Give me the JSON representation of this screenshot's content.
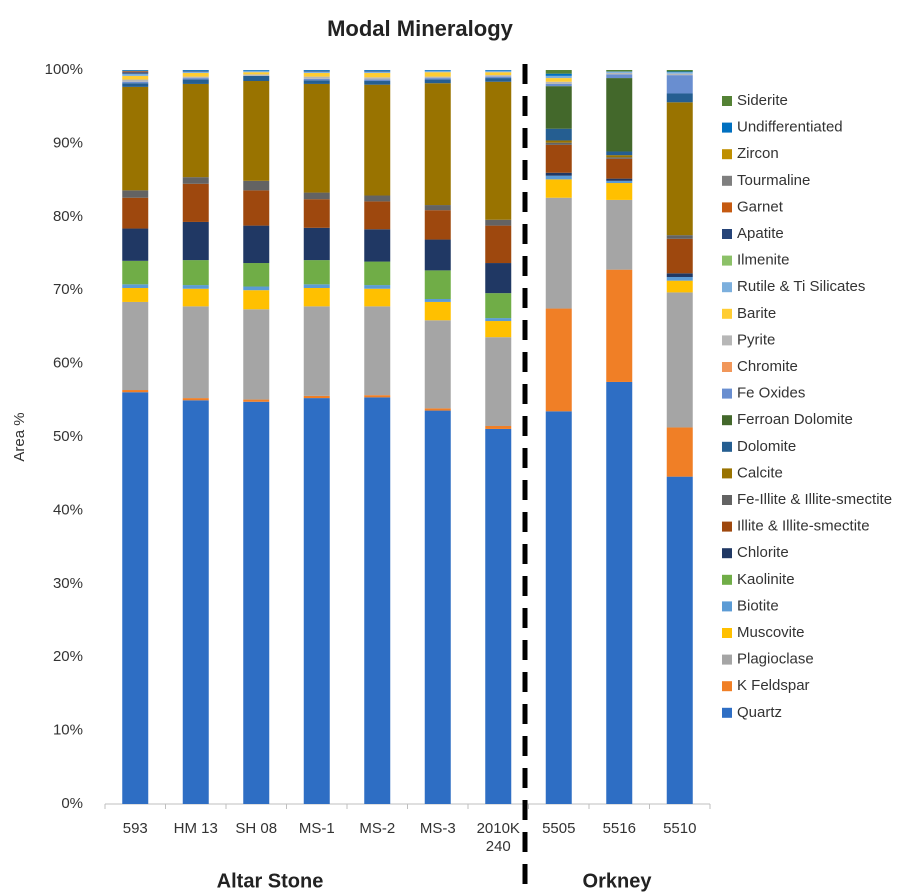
{
  "chart_data": {
    "type": "stacked_bar",
    "title": "Modal Mineralogy",
    "y_label": "Area %",
    "categories": [
      "593",
      "HM 13",
      "SH 08",
      "MS-1",
      "MS-2",
      "MS-3",
      "2010K 240",
      "5505",
      "5516",
      "5510"
    ],
    "groups": [
      "Altar Stone",
      "Orkney"
    ],
    "ylim": [
      0,
      100
    ],
    "yticks": [
      {
        "value": 0,
        "label": "0%"
      },
      {
        "value": 10,
        "label": "10%"
      },
      {
        "value": 20,
        "label": "20%"
      },
      {
        "value": 30,
        "label": "30%"
      },
      {
        "value": 40,
        "label": "40%"
      },
      {
        "value": 50,
        "label": "50%"
      },
      {
        "value": 60,
        "label": "60%"
      },
      {
        "value": 70,
        "label": "70%"
      },
      {
        "value": 80,
        "label": "80%"
      },
      {
        "value": 90,
        "label": "90%"
      },
      {
        "value": 100,
        "label": "100%"
      }
    ],
    "legend": "right",
    "series": [
      {
        "name": "Quartz",
        "color": "#2e6ec4",
        "values": [
          56.1,
          55.0,
          54.8,
          55.3,
          55.4,
          53.6,
          51.1,
          53.5,
          57.5,
          44.6
        ]
      },
      {
        "name": "K Feldspar",
        "color": "#f07f26",
        "values": [
          0.3,
          0.3,
          0.3,
          0.3,
          0.3,
          0.3,
          0.4,
          14.0,
          15.3,
          6.7
        ]
      },
      {
        "name": "Plagioclase",
        "color": "#a5a5a5",
        "values": [
          12.0,
          12.5,
          12.3,
          12.2,
          12.1,
          12.0,
          12.1,
          15.1,
          9.5,
          18.4
        ]
      },
      {
        "name": "Muscovite",
        "color": "#ffc000",
        "values": [
          1.9,
          2.4,
          2.6,
          2.5,
          2.4,
          2.5,
          2.2,
          2.5,
          2.3,
          1.6
        ]
      },
      {
        "name": "Biotite",
        "color": "#5b9bd5",
        "values": [
          0.5,
          0.5,
          0.5,
          0.5,
          0.5,
          0.4,
          0.4,
          0.5,
          0.3,
          0.5
        ]
      },
      {
        "name": "Kaolinite",
        "color": "#70ad47",
        "values": [
          3.2,
          3.4,
          3.2,
          3.3,
          3.2,
          3.9,
          3.4,
          0,
          0,
          0
        ]
      },
      {
        "name": "Chlorite",
        "color": "#203864",
        "values": [
          4.4,
          5.2,
          5.1,
          4.4,
          4.4,
          4.2,
          4.1,
          0.4,
          0.3,
          0.5
        ]
      },
      {
        "name": "Illite & Illite-smectite",
        "color": "#9e480e",
        "values": [
          4.2,
          5.2,
          4.8,
          3.9,
          3.8,
          4.0,
          5.1,
          3.8,
          2.7,
          4.7
        ]
      },
      {
        "name": "Fe-Illite & Illite-smectite",
        "color": "#636363",
        "values": [
          1.0,
          0.9,
          1.3,
          0.9,
          0.8,
          0.7,
          0.8,
          0.3,
          0.2,
          0.5
        ]
      },
      {
        "name": "Calcite",
        "color": "#997300",
        "values": [
          14.1,
          12.7,
          13.6,
          14.8,
          15.1,
          16.6,
          18.8,
          0.3,
          0.3,
          18.1
        ]
      },
      {
        "name": "Dolomite",
        "color": "#255e91",
        "values": [
          0.5,
          0.6,
          0.7,
          0.5,
          0.5,
          0.5,
          0.5,
          1.6,
          0.5,
          1.2
        ]
      },
      {
        "name": "Ferroan Dolomite",
        "color": "#43682b",
        "values": [
          0,
          0,
          0,
          0,
          0,
          0,
          0,
          5.8,
          10.0,
          0
        ]
      },
      {
        "name": "Fe Oxides",
        "color": "#698ed0",
        "values": [
          0.2,
          0.2,
          0,
          0.2,
          0.2,
          0.2,
          0.2,
          0.3,
          0.5,
          2.5
        ]
      },
      {
        "name": "Chromite",
        "color": "#f1975a",
        "values": [
          0,
          0,
          0,
          0,
          0,
          0,
          0,
          0,
          0,
          0
        ]
      },
      {
        "name": "Pyrite",
        "color": "#b7b7b7",
        "values": [
          0.3,
          0.2,
          0.2,
          0.3,
          0.3,
          0.2,
          0.2,
          0.3,
          0.2,
          0.2
        ]
      },
      {
        "name": "Barite",
        "color": "#ffcd33",
        "values": [
          0.5,
          0.5,
          0.3,
          0.5,
          0.6,
          0.6,
          0.4,
          0.5,
          0,
          0
        ]
      },
      {
        "name": "Rutile & Ti Silicates",
        "color": "#7cafdd",
        "values": [
          0.3,
          0.2,
          0.2,
          0.2,
          0.2,
          0.2,
          0.2,
          0.3,
          0.2,
          0.2
        ]
      },
      {
        "name": "Ilmenite",
        "color": "#8cc168",
        "values": [
          0,
          0,
          0,
          0,
          0,
          0,
          0,
          0,
          0,
          0
        ]
      },
      {
        "name": "Apatite",
        "color": "#264478",
        "values": [
          0.2,
          0.1,
          0,
          0.1,
          0.1,
          0,
          0,
          0,
          0,
          0
        ]
      },
      {
        "name": "Garnet",
        "color": "#c55a11",
        "values": [
          0.1,
          0,
          0,
          0,
          0,
          0,
          0,
          0,
          0,
          0
        ]
      },
      {
        "name": "Tourmaline",
        "color": "#7f7f7f",
        "values": [
          0.1,
          0,
          0,
          0,
          0,
          0,
          0,
          0,
          0,
          0
        ]
      },
      {
        "name": "Zircon",
        "color": "#bf8f00",
        "values": [
          0,
          0,
          0,
          0,
          0,
          0,
          0,
          0,
          0,
          0
        ]
      },
      {
        "name": "Undifferentiated",
        "color": "#0070c0",
        "values": [
          0.1,
          0.1,
          0.1,
          0.1,
          0.1,
          0.1,
          0.1,
          0.3,
          0,
          0.1
        ]
      },
      {
        "name": "Siderite",
        "color": "#548235",
        "values": [
          0,
          0,
          0,
          0,
          0,
          0,
          0,
          0.5,
          0.2,
          0.2
        ]
      }
    ]
  }
}
